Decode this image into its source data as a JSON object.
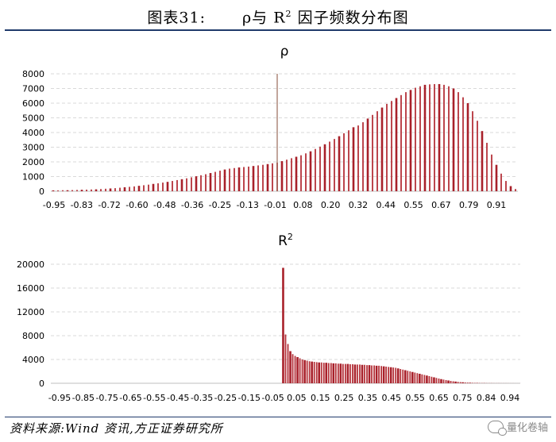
{
  "header": {
    "title_prefix": "图表31:",
    "title_main": "ρ与 R",
    "title_sup": "2",
    "title_suffix": " 因子频数分布图"
  },
  "footer": {
    "source": "资料来源:Wind 资讯,方正证券研究所",
    "watermark": "量化卷轴"
  },
  "colors": {
    "bar": "#a8202a",
    "bar_light": "#b5323a",
    "grid": "#d9d9d9",
    "axis_text": "#000000",
    "header_line": "#1f3a6b",
    "marker": "#9a6b5a"
  },
  "chart_data": [
    {
      "type": "bar",
      "title": "ρ",
      "ylim": [
        0,
        8000
      ],
      "yticks": [
        0,
        1000,
        2000,
        3000,
        4000,
        5000,
        6000,
        7000,
        8000
      ],
      "x_tick_labels": [
        "-0.95",
        "-0.83",
        "-0.72",
        "-0.60",
        "-0.48",
        "-0.36",
        "-0.25",
        "-0.13",
        "-0.01",
        "0.08",
        "0.20",
        "0.32",
        "0.44",
        "0.55",
        "0.67",
        "0.79",
        "0.91"
      ],
      "marker_line_at": -0.01,
      "x": [
        -0.95,
        -0.93,
        -0.91,
        -0.89,
        -0.87,
        -0.85,
        -0.83,
        -0.81,
        -0.79,
        -0.77,
        -0.75,
        -0.73,
        -0.71,
        -0.69,
        -0.67,
        -0.65,
        -0.63,
        -0.61,
        -0.59,
        -0.57,
        -0.55,
        -0.53,
        -0.51,
        -0.49,
        -0.47,
        -0.45,
        -0.43,
        -0.41,
        -0.39,
        -0.37,
        -0.35,
        -0.33,
        -0.31,
        -0.29,
        -0.27,
        -0.25,
        -0.23,
        -0.21,
        -0.19,
        -0.17,
        -0.15,
        -0.13,
        -0.11,
        -0.09,
        -0.07,
        -0.05,
        -0.03,
        -0.01,
        0.01,
        0.03,
        0.05,
        0.07,
        0.09,
        0.11,
        0.13,
        0.15,
        0.17,
        0.19,
        0.21,
        0.23,
        0.25,
        0.27,
        0.29,
        0.31,
        0.33,
        0.35,
        0.37,
        0.39,
        0.41,
        0.43,
        0.45,
        0.47,
        0.49,
        0.51,
        0.53,
        0.55,
        0.57,
        0.59,
        0.61,
        0.63,
        0.65,
        0.67,
        0.69,
        0.71,
        0.73,
        0.75,
        0.77,
        0.79,
        0.81,
        0.83,
        0.85,
        0.87,
        0.89,
        0.91,
        0.93,
        0.95,
        0.97,
        0.99
      ],
      "values": [
        60,
        60,
        70,
        70,
        80,
        90,
        100,
        110,
        120,
        130,
        150,
        170,
        190,
        210,
        240,
        270,
        300,
        330,
        370,
        410,
        450,
        500,
        540,
        590,
        640,
        700,
        760,
        820,
        880,
        950,
        1020,
        1090,
        1160,
        1240,
        1320,
        1400,
        1480,
        1540,
        1580,
        1620,
        1650,
        1680,
        1720,
        1760,
        1800,
        1850,
        1900,
        1950,
        2050,
        2150,
        2250,
        2350,
        2450,
        2580,
        2720,
        2880,
        3040,
        3200,
        3380,
        3560,
        3750,
        3950,
        4150,
        4360,
        4480,
        4700,
        4950,
        5200,
        5450,
        5700,
        5950,
        6150,
        6350,
        6550,
        6750,
        6900,
        7050,
        7150,
        7250,
        7280,
        7300,
        7300,
        7250,
        7150,
        7000,
        6750,
        6400,
        6000,
        5450,
        4800,
        4100,
        3300,
        2500,
        1800,
        1200,
        700,
        350,
        150
      ]
    },
    {
      "type": "bar",
      "title": "R2",
      "ylim": [
        0,
        20000
      ],
      "yticks": [
        0,
        4000,
        8000,
        12000,
        16000,
        20000
      ],
      "x_tick_labels": [
        "-0.95",
        "-0.85",
        "-0.75",
        "-0.65",
        "-0.55",
        "-0.45",
        "-0.35",
        "-0.25",
        "-0.15",
        "-0.05",
        "0.05",
        "0.15",
        "0.25",
        "0.35",
        "0.45",
        "0.55",
        "0.65",
        "0.75",
        "0.84",
        "0.94"
      ],
      "x": [
        0.01,
        0.02,
        0.03,
        0.04,
        0.05,
        0.06,
        0.07,
        0.08,
        0.09,
        0.1,
        0.11,
        0.12,
        0.13,
        0.14,
        0.15,
        0.16,
        0.17,
        0.18,
        0.19,
        0.2,
        0.21,
        0.22,
        0.23,
        0.24,
        0.25,
        0.26,
        0.27,
        0.28,
        0.29,
        0.3,
        0.31,
        0.32,
        0.33,
        0.34,
        0.35,
        0.36,
        0.37,
        0.38,
        0.39,
        0.4,
        0.41,
        0.42,
        0.43,
        0.44,
        0.45,
        0.46,
        0.47,
        0.48,
        0.49,
        0.5,
        0.51,
        0.52,
        0.53,
        0.54,
        0.55,
        0.56,
        0.57,
        0.58,
        0.59,
        0.6,
        0.61,
        0.62,
        0.63,
        0.64,
        0.65,
        0.66,
        0.67,
        0.68,
        0.69,
        0.7,
        0.71,
        0.72,
        0.73,
        0.74,
        0.75,
        0.76,
        0.77,
        0.78,
        0.79,
        0.8,
        0.81,
        0.82,
        0.83,
        0.84,
        0.85,
        0.86,
        0.87,
        0.88,
        0.89,
        0.9,
        0.91,
        0.92,
        0.93,
        0.94,
        0.95,
        0.96,
        0.97,
        0.98,
        0.99,
        1.0
      ],
      "values": [
        19400,
        8200,
        6600,
        5400,
        4900,
        4600,
        4400,
        4200,
        4000,
        3900,
        3800,
        3700,
        3650,
        3600,
        3550,
        3500,
        3500,
        3450,
        3450,
        3400,
        3400,
        3350,
        3350,
        3300,
        3300,
        3250,
        3250,
        3250,
        3200,
        3200,
        3150,
        3150,
        3150,
        3100,
        3100,
        3050,
        3050,
        3000,
        3000,
        2950,
        2950,
        2900,
        2850,
        2800,
        2750,
        2700,
        2650,
        2600,
        2500,
        2400,
        2300,
        2200,
        2100,
        2000,
        1900,
        1800,
        1700,
        1600,
        1500,
        1400,
        1300,
        1200,
        1100,
        1000,
        900,
        800,
        700,
        620,
        540,
        470,
        400,
        340,
        290,
        240,
        200,
        170,
        140,
        115,
        95,
        80,
        65,
        55,
        45,
        40,
        35,
        30,
        25,
        22,
        20,
        18,
        16,
        14,
        12,
        10,
        9,
        8,
        7,
        6,
        5,
        4
      ]
    }
  ]
}
